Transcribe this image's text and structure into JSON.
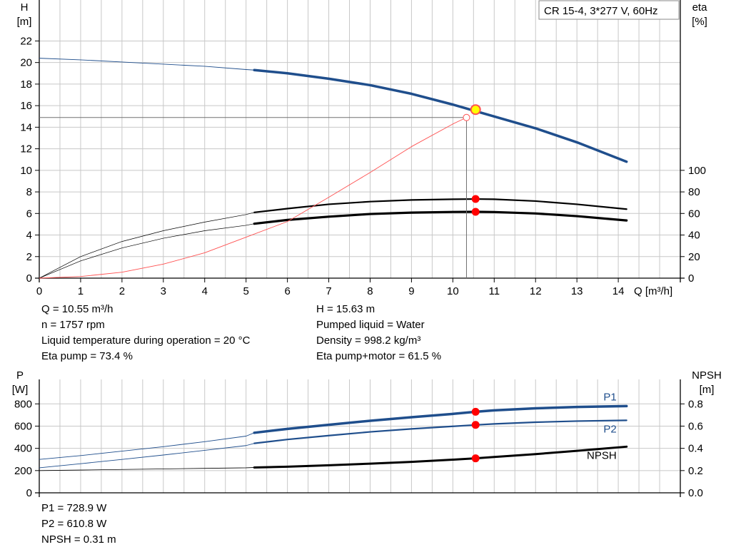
{
  "colors": {
    "head_curve": "#1f4e8c",
    "efficiency_curve": "#000000",
    "duty_curve": "#ff5050",
    "duty_point_fill": "#ffff00",
    "operating_point_marker": "#ff0000",
    "grid": "#c8c8c8"
  },
  "pump_label": "CR 15-4, 3*277 V, 60Hz",
  "top_info": {
    "left": [
      "Q = 10.55 m³/h",
      "n = 1757 rpm",
      "Liquid temperature during operation = 20 °C",
      "Eta pump = 73.4 %"
    ],
    "right": [
      "H = 15.63 m",
      "Pumped liquid = Water",
      "Density = 998.2 kg/m³",
      "Eta pump+motor = 61.5 %"
    ]
  },
  "bottom_info": [
    "P1 = 728.9 W",
    "P2 = 610.8 W",
    "NPSH = 0.31 m"
  ],
  "chart_data": [
    {
      "type": "line",
      "xlabel": "Q [m³/h]",
      "ylabel_left": "H\n[m]",
      "ylabel_right": "eta\n[%]",
      "xlim": [
        0,
        15.5
      ],
      "ylim_left": [
        0,
        25.8
      ],
      "ylim_right": [
        0,
        258
      ],
      "x_ticks": [
        0,
        1,
        2,
        3,
        4,
        5,
        6,
        7,
        8,
        9,
        10,
        11,
        12,
        13,
        14
      ],
      "y_ticks_left": [
        0,
        2,
        4,
        6,
        8,
        10,
        12,
        14,
        16,
        18,
        20,
        22
      ],
      "y_ticks_right": [
        0,
        20,
        40,
        60,
        80,
        100
      ],
      "grid": true,
      "thick_from_x": 5.2,
      "series": [
        {
          "axis": "left",
          "role": "head",
          "color": "#1f4e8c",
          "width": 3.5,
          "thin_width": 0.9,
          "x": [
            0,
            1,
            2,
            3,
            4,
            5,
            5.2,
            6,
            7,
            8,
            9,
            10,
            11,
            12,
            13,
            14.2
          ],
          "y": [
            20.4,
            20.25,
            20.05,
            19.85,
            19.65,
            19.35,
            19.3,
            19.0,
            18.5,
            17.9,
            17.1,
            16.1,
            15.0,
            13.9,
            12.6,
            10.8
          ]
        },
        {
          "axis": "right",
          "role": "eta-pump",
          "color": "#000000",
          "width": 2.2,
          "thin_width": 0.7,
          "x": [
            0,
            1,
            2,
            3,
            4,
            5,
            5.2,
            6,
            7,
            8,
            9,
            10,
            10.55,
            11,
            12,
            13,
            14.2
          ],
          "y": [
            0,
            20,
            34,
            44,
            52,
            59,
            61,
            64.5,
            68.5,
            71,
            72.5,
            73.2,
            73.4,
            73.2,
            71.5,
            68.5,
            64
          ]
        },
        {
          "axis": "right",
          "role": "eta-pump-motor",
          "color": "#000000",
          "width": 3.2,
          "thin_width": 0.7,
          "x": [
            0,
            1,
            2,
            3,
            4,
            5,
            5.2,
            6,
            7,
            8,
            9,
            10,
            10.55,
            11,
            12,
            13,
            14.2
          ],
          "y": [
            0,
            16,
            28,
            37,
            44,
            49,
            50.5,
            54,
            57,
            59.5,
            60.8,
            61.4,
            61.5,
            61.3,
            60,
            57.5,
            53.5
          ]
        },
        {
          "axis": "left",
          "role": "system-curve",
          "color": "#ff5050",
          "width": 0.9,
          "thin_width": 0.9,
          "all_thin": true,
          "x": [
            0,
            1,
            2,
            3,
            4,
            5,
            6,
            7,
            8,
            9,
            10,
            10.33
          ],
          "y": [
            0,
            0.15,
            0.55,
            1.3,
            2.35,
            3.8,
            5.25,
            7.5,
            9.8,
            12.2,
            14.3,
            14.9
          ]
        }
      ],
      "duty_point": {
        "x": 10.55,
        "y": 15.63
      },
      "requested_point": {
        "x": 10.33,
        "y": 14.9
      },
      "markers_right": [
        {
          "x": 10.55,
          "y": 73.4
        },
        {
          "x": 10.55,
          "y": 61.5
        }
      ]
    },
    {
      "type": "line",
      "ylabel_left": "P\n[W]",
      "ylabel_right": "NPSH\n[m]",
      "xlim": [
        0,
        15.5
      ],
      "ylim_left": [
        0,
        1020
      ],
      "ylim_right": [
        0,
        1.02
      ],
      "y_ticks_left": [
        0,
        200,
        400,
        600,
        800
      ],
      "y_ticks_right": [
        0.0,
        0.2,
        0.4,
        0.6,
        0.8
      ],
      "y_ticklabels_right": [
        "0.0",
        "0.2",
        "0.4",
        "0.6",
        "0.8"
      ],
      "grid": true,
      "thick_from_x": 5.2,
      "series": [
        {
          "name": "P1",
          "axis": "left",
          "color": "#1f4e8c",
          "width": 3.5,
          "thin_width": 0.9,
          "x": [
            0,
            1,
            2,
            3,
            4,
            5,
            5.2,
            6,
            7,
            8,
            9,
            10,
            10.55,
            11,
            12,
            13,
            14.2
          ],
          "y": [
            300,
            335,
            375,
            415,
            460,
            510,
            540,
            575,
            612,
            648,
            680,
            710,
            728.9,
            742,
            760,
            772,
            780
          ]
        },
        {
          "name": "P2",
          "axis": "left",
          "color": "#1f4e8c",
          "width": 2.2,
          "thin_width": 0.9,
          "x": [
            0,
            1,
            2,
            3,
            4,
            5,
            5.2,
            6,
            7,
            8,
            9,
            10,
            10.55,
            11,
            12,
            13,
            14.2
          ],
          "y": [
            225,
            262,
            300,
            340,
            382,
            425,
            445,
            480,
            515,
            548,
            575,
            598,
            610.8,
            620,
            635,
            645,
            652
          ]
        },
        {
          "name": "NPSH",
          "axis": "right",
          "color": "#000000",
          "width": 3.0,
          "thin_width": 0.8,
          "x": [
            0,
            1,
            2,
            3,
            4,
            5,
            5.2,
            6,
            7,
            8,
            9,
            10,
            10.55,
            11,
            12,
            13,
            14.2
          ],
          "y": [
            0.2,
            0.205,
            0.21,
            0.215,
            0.22,
            0.225,
            0.228,
            0.235,
            0.248,
            0.262,
            0.278,
            0.298,
            0.31,
            0.322,
            0.348,
            0.378,
            0.415
          ]
        }
      ],
      "markers": [
        {
          "axis": "left",
          "x": 10.55,
          "y": 728.9
        },
        {
          "axis": "left",
          "x": 10.55,
          "y": 610.8
        },
        {
          "axis": "right",
          "x": 10.55,
          "y": 0.31
        }
      ]
    }
  ]
}
